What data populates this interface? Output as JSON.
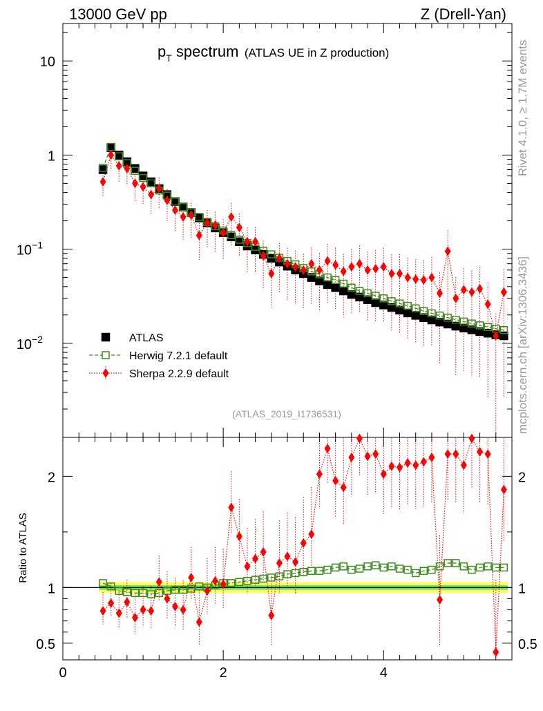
{
  "header": {
    "left": "13000 GeV pp",
    "right": "Z (Drell-Yan)"
  },
  "side_labels": {
    "top": "Rivet 4.1.0, ≥ 1.7M events",
    "bottom": "mcplots.cern.ch [arXiv:1306.3436]"
  },
  "plot": {
    "title_main": "p",
    "title_sub": "T",
    "title_rest": " spectrum",
    "title_extra": "(ATLAS UE in Z production)",
    "analysis_id": "(ATLAS_2019_I1736531)",
    "ratio_ylabel": "Ratio to ATLAS"
  },
  "colors": {
    "atlas": "#000000",
    "herwig": "#3a8a1a",
    "sherpa": "#ff0000",
    "band_outer": "#ffff66",
    "band_inner": "#66dd66"
  },
  "chart_data": [
    {
      "type": "scatter",
      "panel": "main",
      "yscale": "log",
      "xlim": [
        0,
        5.6
      ],
      "ylim": [
        0.001,
        25
      ],
      "x_ticks": [
        "0",
        "2",
        "4"
      ],
      "y_ticks": [
        {
          "value": 10,
          "base": "10",
          "exp": ""
        },
        {
          "value": 1,
          "base": "1",
          "exp": ""
        },
        {
          "value": 0.1,
          "base": "10",
          "exp": "−1"
        },
        {
          "value": 0.01,
          "base": "10",
          "exp": "−2"
        }
      ],
      "legend_position": "bottom-left",
      "x": [
        0.5,
        0.6,
        0.7,
        0.8,
        0.9,
        1.0,
        1.1,
        1.2,
        1.3,
        1.4,
        1.5,
        1.6,
        1.7,
        1.8,
        1.9,
        2.0,
        2.1,
        2.2,
        2.3,
        2.4,
        2.5,
        2.6,
        2.7,
        2.8,
        2.9,
        3.0,
        3.1,
        3.2,
        3.3,
        3.4,
        3.5,
        3.6,
        3.7,
        3.8,
        3.9,
        4.0,
        4.1,
        4.2,
        4.3,
        4.4,
        4.5,
        4.6,
        4.7,
        4.8,
        4.9,
        5.0,
        5.1,
        5.2,
        5.3,
        5.4,
        5.5
      ],
      "series": [
        {
          "name": "ATLAS",
          "marker": "filled-square",
          "values": [
            0.7,
            1.2,
            1.0,
            0.85,
            0.72,
            0.6,
            0.52,
            0.44,
            0.38,
            0.32,
            0.28,
            0.245,
            0.215,
            0.19,
            0.168,
            0.15,
            0.135,
            0.12,
            0.108,
            0.098,
            0.088,
            0.08,
            0.073,
            0.066,
            0.06,
            0.055,
            0.05,
            0.046,
            0.042,
            0.039,
            0.036,
            0.033,
            0.031,
            0.029,
            0.027,
            0.0255,
            0.024,
            0.0225,
            0.021,
            0.0198,
            0.0187,
            0.0177,
            0.0168,
            0.016,
            0.0152,
            0.0145,
            0.0139,
            0.0133,
            0.0128,
            0.0123,
            0.012
          ]
        },
        {
          "name": "Herwig 7.2.1 default",
          "marker": "open-square",
          "line": "dashed",
          "values": [
            0.73,
            1.22,
            0.97,
            0.82,
            0.68,
            0.57,
            0.5,
            0.42,
            0.37,
            0.32,
            0.28,
            0.245,
            0.22,
            0.195,
            0.175,
            0.158,
            0.141,
            0.126,
            0.116,
            0.106,
            0.096,
            0.088,
            0.081,
            0.075,
            0.069,
            0.063,
            0.058,
            0.054,
            0.05,
            0.047,
            0.043,
            0.039,
            0.036,
            0.034,
            0.032,
            0.03,
            0.028,
            0.0265,
            0.025,
            0.0235,
            0.022,
            0.0208,
            0.0197,
            0.0187,
            0.0178,
            0.017,
            0.0162,
            0.0155,
            0.0149,
            0.0143,
            0.0138
          ]
        },
        {
          "name": "Sherpa 2.2.9 default",
          "marker": "diamond",
          "line": "dotted",
          "values": [
            0.52,
            1.0,
            0.77,
            0.72,
            0.5,
            0.46,
            0.38,
            0.44,
            0.33,
            0.26,
            0.22,
            0.23,
            0.14,
            0.19,
            0.18,
            0.15,
            0.22,
            0.17,
            0.12,
            0.12,
            0.085,
            0.055,
            0.08,
            0.07,
            0.065,
            0.06,
            0.07,
            0.06,
            0.075,
            0.068,
            0.058,
            0.065,
            0.07,
            0.06,
            0.062,
            0.065,
            0.055,
            0.055,
            0.05,
            0.048,
            0.047,
            0.05,
            0.034,
            0.095,
            0.03,
            0.037,
            0.035,
            0.038,
            0.026,
            0.012,
            0.035
          ]
        }
      ]
    },
    {
      "type": "scatter",
      "panel": "ratio",
      "ylabel": "Ratio to ATLAS",
      "xlim": [
        0,
        5.6
      ],
      "ylim": [
        0.35,
        2.35
      ],
      "y_ticks": [
        "0.5",
        "1",
        "2"
      ],
      "x_ticks": [
        "0",
        "2",
        "4"
      ],
      "band": {
        "inner": 0.02,
        "outer": 0.05
      },
      "x": [
        0.5,
        0.6,
        0.7,
        0.8,
        0.9,
        1.0,
        1.1,
        1.2,
        1.3,
        1.4,
        1.5,
        1.6,
        1.7,
        1.8,
        1.9,
        2.0,
        2.1,
        2.2,
        2.3,
        2.4,
        2.5,
        2.6,
        2.7,
        2.8,
        2.9,
        3.0,
        3.1,
        3.2,
        3.3,
        3.4,
        3.5,
        3.6,
        3.7,
        3.8,
        3.9,
        4.0,
        4.1,
        4.2,
        4.3,
        4.4,
        4.5,
        4.6,
        4.7,
        4.8,
        4.9,
        5.0,
        5.1,
        5.2,
        5.3,
        5.4,
        5.5
      ],
      "series": [
        {
          "name": "Herwig 7.2.1 default",
          "values": [
            1.04,
            1.01,
            0.97,
            0.96,
            0.95,
            0.95,
            0.94,
            0.95,
            0.97,
            0.98,
            0.98,
            0.99,
            1.01,
            1.0,
            1.02,
            1.04,
            1.04,
            1.05,
            1.06,
            1.07,
            1.08,
            1.09,
            1.1,
            1.12,
            1.13,
            1.14,
            1.15,
            1.15,
            1.16,
            1.18,
            1.19,
            1.16,
            1.17,
            1.19,
            1.2,
            1.18,
            1.19,
            1.17,
            1.16,
            1.13,
            1.15,
            1.16,
            1.19,
            1.22,
            1.22,
            1.19,
            1.16,
            1.18,
            1.19,
            1.18,
            1.18
          ]
        },
        {
          "name": "Sherpa 2.2.9 default",
          "values": [
            0.79,
            0.86,
            0.77,
            0.87,
            0.73,
            0.8,
            0.79,
            1.05,
            0.9,
            0.83,
            0.8,
            1.09,
            0.69,
            0.97,
            1.06,
            1.03,
            1.72,
            1.46,
            1.19,
            1.26,
            1.32,
            0.75,
            1.22,
            1.28,
            1.23,
            1.4,
            1.48,
            2.02,
            2.25,
            1.96,
            1.9,
            2.17,
            2.34,
            2.18,
            2.2,
            2.02,
            2.09,
            2.08,
            2.12,
            2.1,
            2.13,
            2.17,
            0.89,
            2.2,
            2.2,
            2.1,
            2.34,
            2.22,
            2.2,
            0.42,
            1.88
          ]
        }
      ]
    }
  ]
}
